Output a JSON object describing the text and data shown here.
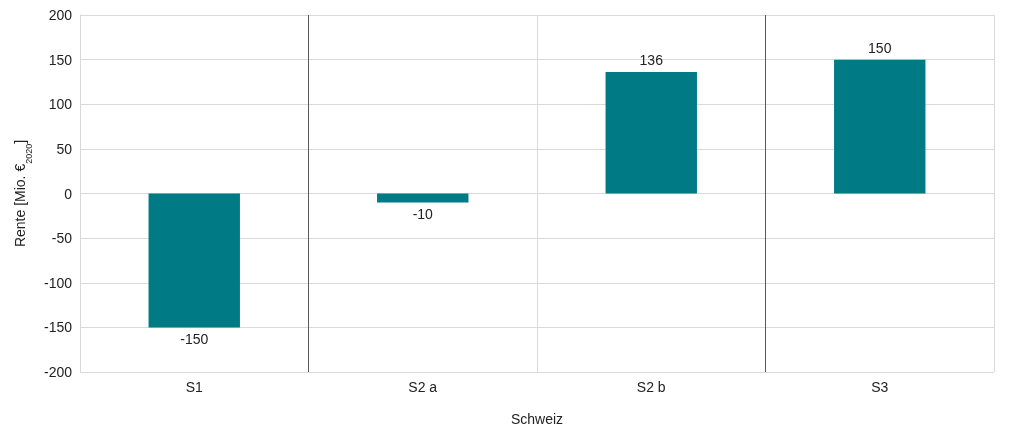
{
  "chart_data": {
    "type": "bar",
    "xlabel": "Schweiz",
    "ylabel": "Rente [Mio. €$_{2020}$]",
    "categories": [
      "S1",
      "S2 a",
      "S2 b",
      "S3"
    ],
    "values": [
      -150,
      -10,
      136,
      150
    ],
    "color": "#007b85",
    "ylim": [
      -200,
      200
    ],
    "yticks": [
      -200,
      -150,
      -100,
      -50,
      0,
      50,
      100,
      150,
      200
    ],
    "grid": true,
    "data_labels": true
  }
}
